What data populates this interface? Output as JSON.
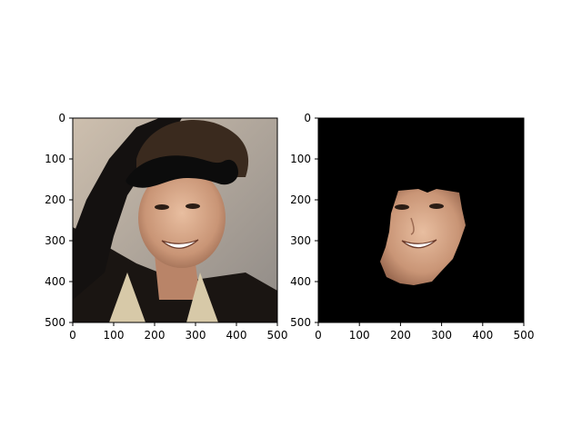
{
  "chart_data": [
    {
      "type": "image",
      "panel": "left",
      "content": "original photo with drawn black mustache shape over hair",
      "xlim": [
        0,
        500
      ],
      "ylim": [
        500,
        0
      ],
      "xticks": [
        0,
        100,
        200,
        300,
        400,
        500
      ],
      "yticks": [
        0,
        100,
        200,
        300,
        400,
        500
      ],
      "xtick_labels": [
        "0",
        "100",
        "200",
        "300",
        "400",
        "500"
      ],
      "ytick_labels": [
        "0",
        "100",
        "200",
        "300",
        "400",
        "500"
      ]
    },
    {
      "type": "image",
      "panel": "right",
      "content": "masked face region on black background",
      "xlim": [
        0,
        500
      ],
      "ylim": [
        500,
        0
      ],
      "xticks": [
        0,
        100,
        200,
        300,
        400,
        500
      ],
      "yticks": [
        0,
        100,
        200,
        300,
        400,
        500
      ],
      "xtick_labels": [
        "0",
        "100",
        "200",
        "300",
        "400",
        "500"
      ],
      "ytick_labels": [
        "0",
        "100",
        "200",
        "300",
        "400",
        "500"
      ]
    }
  ],
  "colors": {
    "background": "#ffffff",
    "mask_black": "#000000",
    "skin": "#d9a98a",
    "skin_shadow": "#b98468",
    "hair": "#3a2a1e",
    "clothing": "#1a1512",
    "photo_bg": "#cfc6bb"
  }
}
